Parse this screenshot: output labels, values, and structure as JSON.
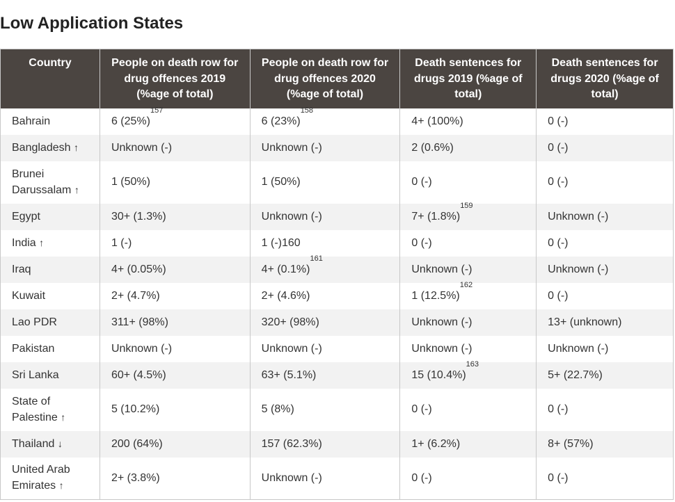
{
  "title": "Low Application States",
  "headers": [
    "Country",
    "People on death row for drug offences 2019 (%age of total)",
    "People on death row for drug offences 2020 (%age of total)",
    "Death sentences for drugs 2019 (%age of total)",
    "Death sentences for drugs 2020 (%age of total)"
  ],
  "rows": [
    {
      "country": "Bahrain",
      "arrow": "",
      "tall": false,
      "cells": [
        {
          "text": "6 (25%)",
          "sup": "157"
        },
        {
          "text": "6 (23%)",
          "sup": "158"
        },
        {
          "text": "4+ (100%)",
          "sup": ""
        },
        {
          "text": "0 (-)",
          "sup": ""
        }
      ]
    },
    {
      "country": "Bangladesh",
      "arrow": "↑",
      "tall": false,
      "cells": [
        {
          "text": "Unknown (-)",
          "sup": ""
        },
        {
          "text": "Unknown (-)",
          "sup": ""
        },
        {
          "text": "2 (0.6%)",
          "sup": ""
        },
        {
          "text": "0 (-)",
          "sup": ""
        }
      ]
    },
    {
      "country": "Brunei Darussalam",
      "arrow": "↑",
      "tall": true,
      "cells": [
        {
          "text": "1 (50%)",
          "sup": ""
        },
        {
          "text": "1 (50%)",
          "sup": ""
        },
        {
          "text": "0 (-)",
          "sup": ""
        },
        {
          "text": "0 (-)",
          "sup": ""
        }
      ]
    },
    {
      "country": "Egypt",
      "arrow": "",
      "tall": false,
      "cells": [
        {
          "text": "30+ (1.3%)",
          "sup": ""
        },
        {
          "text": "Unknown (-)",
          "sup": ""
        },
        {
          "text": "7+ (1.8%)",
          "sup": "159"
        },
        {
          "text": "Unknown (-)",
          "sup": ""
        }
      ]
    },
    {
      "country": "India",
      "arrow": "↑",
      "tall": false,
      "cells": [
        {
          "text": "1 (-)",
          "sup": ""
        },
        {
          "text": "1 (-)160",
          "sup": ""
        },
        {
          "text": "0 (-)",
          "sup": ""
        },
        {
          "text": "0 (-)",
          "sup": ""
        }
      ]
    },
    {
      "country": "Iraq",
      "arrow": "",
      "tall": false,
      "cells": [
        {
          "text": "4+ (0.05%)",
          "sup": ""
        },
        {
          "text": "4+ (0.1%)",
          "sup": "161"
        },
        {
          "text": "Unknown (-)",
          "sup": ""
        },
        {
          "text": "Unknown (-)",
          "sup": ""
        }
      ]
    },
    {
      "country": "Kuwait",
      "arrow": "",
      "tall": false,
      "cells": [
        {
          "text": "2+ (4.7%)",
          "sup": ""
        },
        {
          "text": "2+ (4.6%)",
          "sup": ""
        },
        {
          "text": "1 (12.5%)",
          "sup": "162"
        },
        {
          "text": "0 (-)",
          "sup": ""
        }
      ]
    },
    {
      "country": "Lao PDR",
      "arrow": "",
      "tall": false,
      "cells": [
        {
          "text": "311+ (98%)",
          "sup": ""
        },
        {
          "text": "320+ (98%)",
          "sup": ""
        },
        {
          "text": "Unknown (-)",
          "sup": ""
        },
        {
          "text": "13+ (unknown)",
          "sup": ""
        }
      ]
    },
    {
      "country": "Pakistan",
      "arrow": "",
      "tall": false,
      "cells": [
        {
          "text": "Unknown (-)",
          "sup": ""
        },
        {
          "text": "Unknown (-)",
          "sup": ""
        },
        {
          "text": "Unknown (-)",
          "sup": ""
        },
        {
          "text": "Unknown (-)",
          "sup": ""
        }
      ]
    },
    {
      "country": "Sri Lanka",
      "arrow": "",
      "tall": false,
      "cells": [
        {
          "text": "60+ (4.5%)",
          "sup": ""
        },
        {
          "text": "63+ (5.1%)",
          "sup": ""
        },
        {
          "text": "15 (10.4%)",
          "sup": "163"
        },
        {
          "text": "5+ (22.7%)",
          "sup": ""
        }
      ]
    },
    {
      "country": "State of Palestine",
      "arrow": "↑",
      "tall": true,
      "cells": [
        {
          "text": "5 (10.2%)",
          "sup": ""
        },
        {
          "text": "5 (8%)",
          "sup": ""
        },
        {
          "text": "0 (-)",
          "sup": ""
        },
        {
          "text": "0 (-)",
          "sup": ""
        }
      ]
    },
    {
      "country": "Thailand",
      "arrow": "↓",
      "tall": false,
      "cells": [
        {
          "text": "200 (64%)",
          "sup": ""
        },
        {
          "text": "157 (62.3%)",
          "sup": ""
        },
        {
          "text": "1+ (6.2%)",
          "sup": ""
        },
        {
          "text": "8+ (57%)",
          "sup": ""
        }
      ]
    },
    {
      "country": "United Arab Emirates",
      "arrow": "↑",
      "tall": true,
      "cells": [
        {
          "text": "2+ (3.8%)",
          "sup": ""
        },
        {
          "text": "Unknown (-)",
          "sup": ""
        },
        {
          "text": "0 (-)",
          "sup": ""
        },
        {
          "text": "0 (-)",
          "sup": ""
        }
      ]
    }
  ]
}
